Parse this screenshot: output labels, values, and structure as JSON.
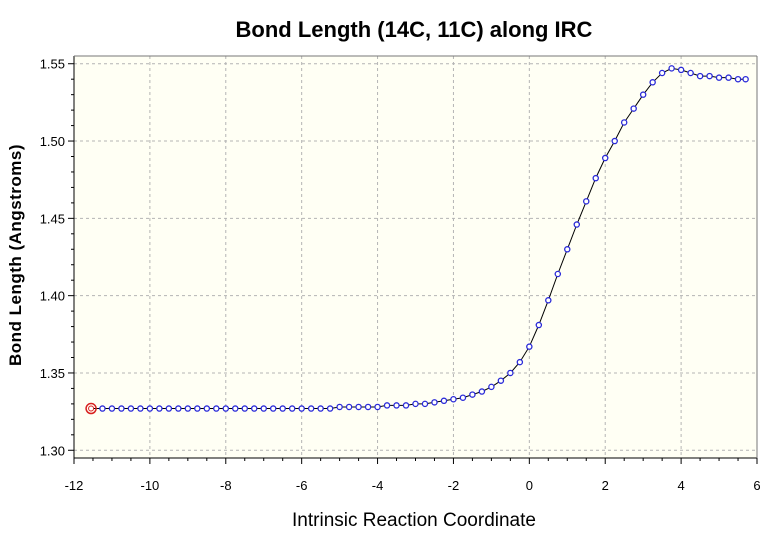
{
  "chart_data": {
    "type": "line",
    "title": "Bond Length (14C, 11C) along IRC",
    "xlabel": "Intrinsic Reaction Coordinate",
    "ylabel": "Bond Length (Angstroms)",
    "xlim": [
      -12,
      6
    ],
    "ylim": [
      1.295,
      1.555
    ],
    "xticks": [
      -12,
      -10,
      -8,
      -6,
      -4,
      -2,
      0,
      2,
      4,
      6
    ],
    "xtick_labels": [
      "-12",
      "-10",
      "-8",
      "-6",
      "-4",
      "-2",
      "0",
      "2",
      "4",
      "6"
    ],
    "yticks": [
      1.3,
      1.35,
      1.4,
      1.45,
      1.5,
      1.55
    ],
    "ytick_labels": [
      "1.30",
      "1.35",
      "1.40",
      "1.45",
      "1.50",
      "1.55"
    ],
    "grid": true,
    "colors": {
      "plot_background": "#fffff4",
      "grid": "#b4b4b4",
      "line": "#000000",
      "marker": "#2a2ad8",
      "highlight_marker": "#d82020"
    },
    "highlighted_point_index": 0,
    "series": [
      {
        "x": [
          -11.55,
          -11.25,
          -11.0,
          -10.75,
          -10.5,
          -10.25,
          -10.0,
          -9.75,
          -9.5,
          -9.25,
          -9.0,
          -8.75,
          -8.5,
          -8.25,
          -8.0,
          -7.75,
          -7.5,
          -7.25,
          -7.0,
          -6.75,
          -6.5,
          -6.25,
          -6.0,
          -5.75,
          -5.5,
          -5.25,
          -5.0,
          -4.75,
          -4.5,
          -4.25,
          -4.0,
          -3.75,
          -3.5,
          -3.25,
          -3.0,
          -2.75,
          -2.5,
          -2.25,
          -2.0,
          -1.75,
          -1.5,
          -1.25,
          -1.0,
          -0.75,
          -0.5,
          -0.25,
          0.0,
          0.25,
          0.5,
          0.75,
          1.0,
          1.25,
          1.5,
          1.75,
          2.0,
          2.25,
          2.5,
          2.75,
          3.0,
          3.25,
          3.5,
          3.75,
          4.0,
          4.25,
          4.5,
          4.75,
          5.0,
          5.25,
          5.5,
          5.7
        ],
        "y": [
          1.327,
          1.327,
          1.327,
          1.327,
          1.327,
          1.327,
          1.327,
          1.327,
          1.327,
          1.327,
          1.327,
          1.327,
          1.327,
          1.327,
          1.327,
          1.327,
          1.327,
          1.327,
          1.327,
          1.327,
          1.327,
          1.327,
          1.327,
          1.327,
          1.327,
          1.327,
          1.328,
          1.328,
          1.328,
          1.328,
          1.328,
          1.329,
          1.329,
          1.329,
          1.33,
          1.33,
          1.331,
          1.332,
          1.333,
          1.334,
          1.336,
          1.338,
          1.341,
          1.345,
          1.35,
          1.357,
          1.367,
          1.381,
          1.397,
          1.414,
          1.43,
          1.446,
          1.461,
          1.476,
          1.489,
          1.5,
          1.512,
          1.521,
          1.53,
          1.538,
          1.544,
          1.547,
          1.546,
          1.544,
          1.542,
          1.542,
          1.541,
          1.541,
          1.54,
          1.54
        ]
      }
    ]
  }
}
